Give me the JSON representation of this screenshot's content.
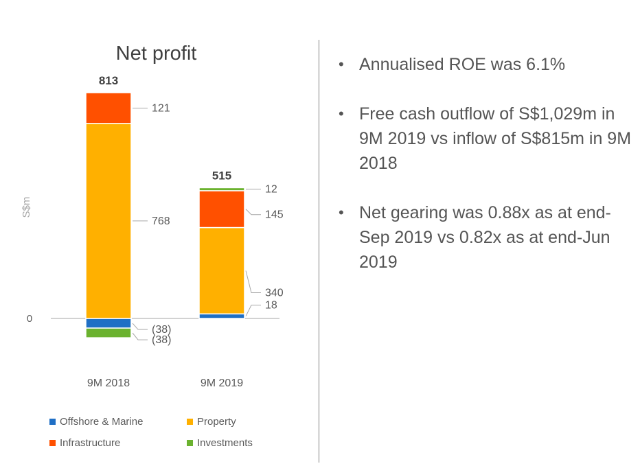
{
  "chart_data": {
    "type": "bar",
    "stacked": true,
    "title": "Net profit",
    "ylabel": "S$m",
    "y_tick_labels": [
      "0"
    ],
    "categories": [
      "9M 2018",
      "9M 2019"
    ],
    "totals": [
      813,
      515
    ],
    "series": [
      {
        "name": "Offshore & Marine",
        "color": "#1f6fc5",
        "values": [
          -38,
          18
        ],
        "labels": [
          "(38)",
          "18"
        ]
      },
      {
        "name": "Property",
        "color": "#ffb000",
        "values": [
          768,
          340
        ],
        "labels": [
          "768",
          "340"
        ]
      },
      {
        "name": "Infrastructure",
        "color": "#ff5000",
        "values": [
          121,
          145
        ],
        "labels": [
          "121",
          "145"
        ]
      },
      {
        "name": "Investments",
        "color": "#6bb22f",
        "values": [
          -38,
          12
        ],
        "labels": [
          "(38)",
          "12"
        ]
      }
    ],
    "legend_placement": "bottom",
    "grid": false
  },
  "bullets": [
    "Annualised ROE was 6.1%",
    "Free cash outflow of S$1,029m in 9M 2019 vs inflow of S$815m in 9M 2018",
    "Net gearing was 0.88x as at end-Sep 2019 vs 0.82x as at end-Jun 2019"
  ]
}
